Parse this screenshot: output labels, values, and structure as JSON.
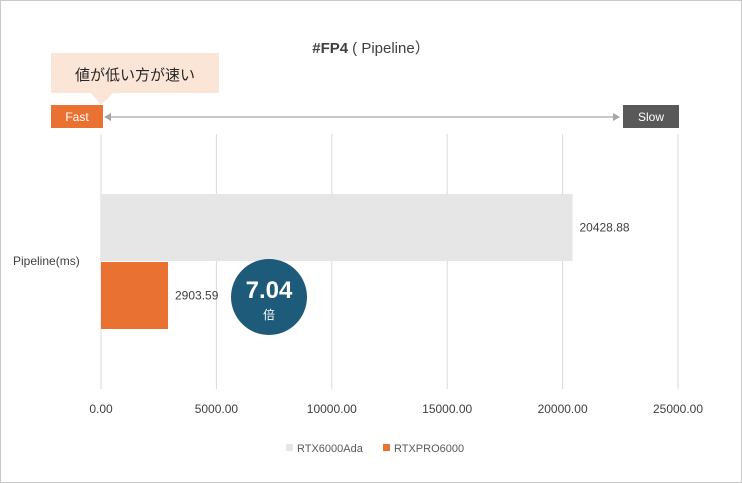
{
  "chart_data": {
    "type": "bar",
    "orientation": "horizontal",
    "title": {
      "bold": "#FP4",
      "rest": "( Pipeline）"
    },
    "categories": [
      "Pipeline(ms)"
    ],
    "series": [
      {
        "name": "RTX6000Ada",
        "values": [
          20428.88
        ],
        "color": "#e6e6e6",
        "label": "20428.88"
      },
      {
        "name": "RTXPRO6000",
        "values": [
          2903.59
        ],
        "color": "#e97132",
        "label": "2903.59"
      }
    ],
    "xlim": [
      0,
      25000
    ],
    "x_ticks": [
      "0.00",
      "5000.00",
      "10000.00",
      "15000.00",
      "20000.00",
      "25000.00"
    ],
    "grid": true,
    "legend_position": "bottom"
  },
  "annotations": {
    "callout": "値が低い方が速い",
    "fast_label": "Fast",
    "slow_label": "Slow",
    "ratio_value": "7.04",
    "ratio_unit": "倍"
  },
  "colors": {
    "fast_box": "#e97132",
    "slow_box": "#595959",
    "callout_bg": "#fbe5d6",
    "ratio_circle": "#1e5b7a",
    "grid": "#d9d9d9",
    "arrow": "#a6a6a6"
  }
}
